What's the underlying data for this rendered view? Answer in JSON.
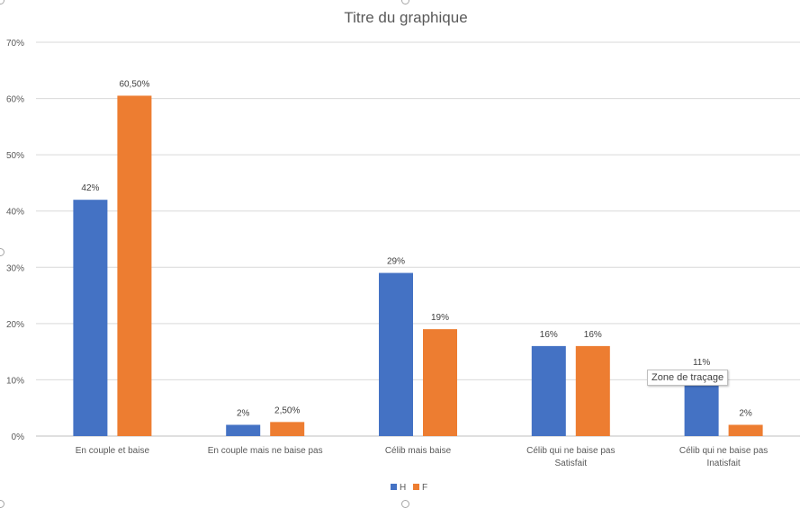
{
  "chart_data": {
    "type": "bar",
    "title": "Titre du graphique",
    "categories": [
      [
        "En couple et baise"
      ],
      [
        "En couple mais ne baise pas"
      ],
      [
        "Célib mais baise"
      ],
      [
        "Célib qui ne baise pas",
        "Satisfait"
      ],
      [
        "Célib qui ne baise pas",
        "Inatisfait"
      ]
    ],
    "series": [
      {
        "name": "H",
        "color": "#4472c4",
        "values": [
          42,
          2,
          29,
          16,
          11
        ],
        "labels": [
          "42%",
          "2%",
          "29%",
          "16%",
          "11%"
        ]
      },
      {
        "name": "F",
        "color": "#ed7d31",
        "values": [
          60.5,
          2.5,
          19,
          16,
          2
        ],
        "labels": [
          "60,50%",
          "2,50%",
          "19%",
          "16%",
          "2%"
        ]
      }
    ],
    "ylim": [
      0,
      70
    ],
    "yticks": [
      0,
      10,
      20,
      30,
      40,
      50,
      60,
      70
    ],
    "ytick_labels": [
      "0%",
      "10%",
      "20%",
      "30%",
      "40%",
      "50%",
      "60%",
      "70%"
    ],
    "grid": true,
    "legend_position": "bottom"
  },
  "tooltip": {
    "text": "Zone de traçage"
  },
  "colors": {
    "gridline": "#d9d9d9",
    "axis": "#bfbfbf",
    "text": "#595959",
    "title": "#595959"
  }
}
